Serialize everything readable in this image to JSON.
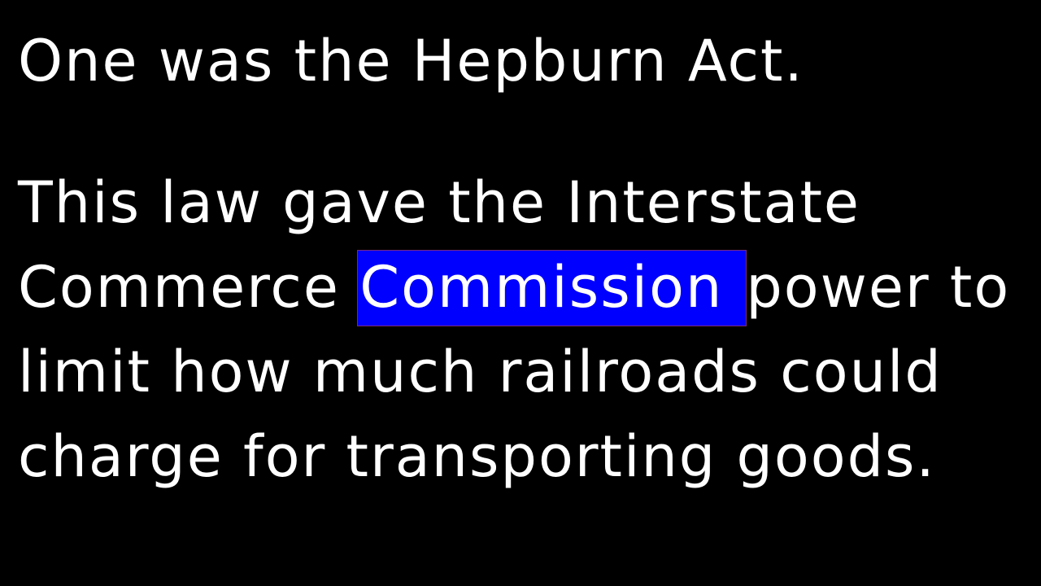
{
  "slide": {
    "line1": "One was the Hepburn Act.",
    "line2": "This law gave the Interstate",
    "line3_before": "Commerce ",
    "line3_highlight": "Commission",
    "line3_after": "power to",
    "line4": "limit how much railroads could",
    "line5": "charge for transporting goods."
  },
  "colors": {
    "background": "#000000",
    "text": "#ffffff",
    "highlight": "#0000ff"
  }
}
